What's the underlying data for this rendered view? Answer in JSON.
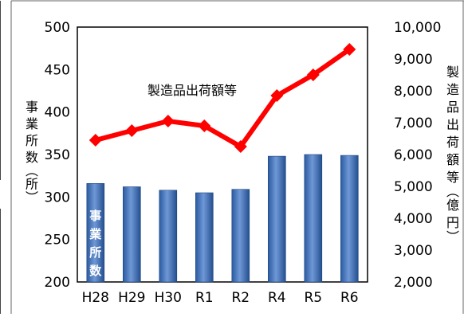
{
  "chart_data": {
    "type": "bar",
    "categories": [
      "H28",
      "H29",
      "H30",
      "R1",
      "R2",
      "R4",
      "R5",
      "R6"
    ],
    "series": [
      {
        "name": "事業所数",
        "type": "bar",
        "axis": "left",
        "values": [
          316,
          312,
          308,
          305,
          309,
          348,
          350,
          349
        ]
      },
      {
        "name": "製造品出荷額等",
        "type": "line",
        "axis": "right",
        "values": [
          6450,
          6750,
          7050,
          6900,
          6250,
          7850,
          8500,
          9300
        ]
      }
    ],
    "ylabel_left": "事業所数(所)",
    "ylabel_right": "製造品出荷額等(億円)",
    "ylim_left": [
      200,
      500
    ],
    "yticks_left": [
      "200",
      "250",
      "300",
      "350",
      "400",
      "450",
      "500"
    ],
    "ylim_right": [
      2000,
      10000
    ],
    "yticks_right": [
      "2,000",
      "3,000",
      "4,000",
      "5,000",
      "6,000",
      "7,000",
      "8,000",
      "9,000",
      "10,000"
    ],
    "grid": false,
    "colors": {
      "bar": "#2e62a8",
      "bar_highlight": "#6f98d6",
      "line": "#ff0000",
      "frame": "#000000"
    }
  }
}
